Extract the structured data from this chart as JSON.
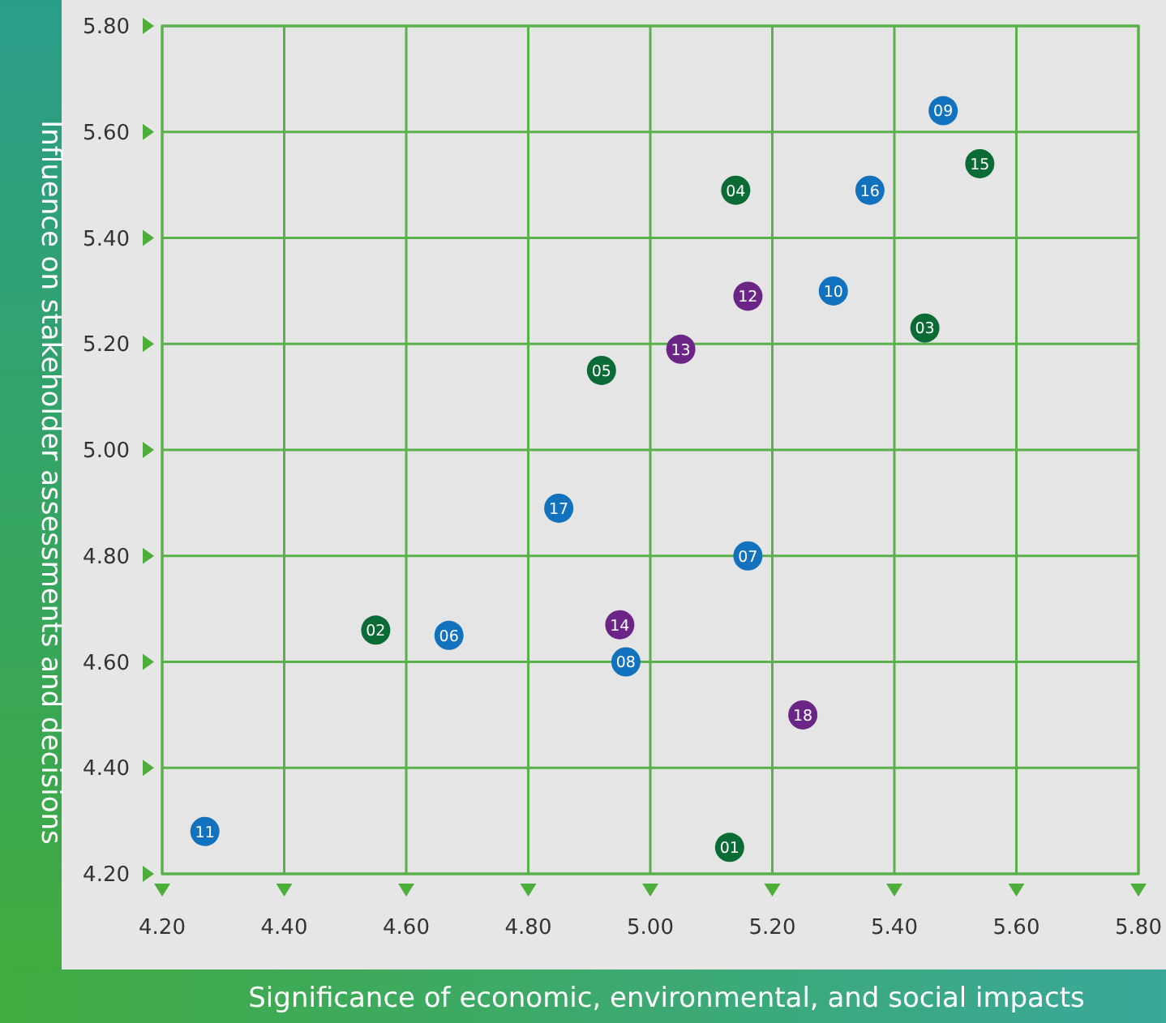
{
  "chart_data": {
    "type": "scatter",
    "xlabel": "Significance of economic, environmental, and social impacts",
    "ylabel": "Influence on stakeholder assessments and decisions",
    "xlim": [
      4.2,
      5.8
    ],
    "ylim": [
      4.2,
      5.8
    ],
    "xticks": [
      {
        "value": 4.2,
        "label": "4.20"
      },
      {
        "value": 4.4,
        "label": "4.40"
      },
      {
        "value": 4.6,
        "label": "4.60"
      },
      {
        "value": 4.8,
        "label": "4.80"
      },
      {
        "value": 5.0,
        "label": "5.00"
      },
      {
        "value": 5.2,
        "label": "5.20"
      },
      {
        "value": 5.4,
        "label": "5.40"
      },
      {
        "value": 5.6,
        "label": "5.60"
      },
      {
        "value": 5.8,
        "label": "5.80"
      }
    ],
    "yticks": [
      {
        "value": 4.2,
        "label": "4.20"
      },
      {
        "value": 4.4,
        "label": "4.40"
      },
      {
        "value": 4.6,
        "label": "4.60"
      },
      {
        "value": 4.8,
        "label": "4.80"
      },
      {
        "value": 5.0,
        "label": "5.00"
      },
      {
        "value": 5.2,
        "label": "5.20"
      },
      {
        "value": 5.4,
        "label": "5.40"
      },
      {
        "value": 5.6,
        "label": "5.60"
      },
      {
        "value": 5.8,
        "label": "5.80"
      }
    ],
    "grid": true,
    "marker": "circle",
    "series": [
      {
        "color": "#0b6b35",
        "x": [
          5.13,
          4.55,
          5.45,
          5.14,
          4.92,
          5.54
        ],
        "values": [
          4.25,
          4.66,
          5.23,
          5.49,
          5.15,
          5.54
        ]
      },
      {
        "color": "#1372bd",
        "x": [
          4.67,
          5.16,
          4.96,
          5.48,
          5.3,
          4.27,
          5.36,
          4.85
        ],
        "values": [
          4.65,
          4.8,
          4.6,
          5.64,
          5.3,
          4.28,
          5.49,
          4.89
        ]
      },
      {
        "color": "#6a2586",
        "x": [
          5.16,
          5.05,
          4.95,
          5.25
        ],
        "values": [
          5.29,
          5.19,
          4.67,
          4.5
        ]
      }
    ],
    "annotations": [
      {
        "text": "01",
        "x": 5.13,
        "y": 4.25
      },
      {
        "text": "02",
        "x": 4.55,
        "y": 4.66
      },
      {
        "text": "03",
        "x": 5.45,
        "y": 5.23
      },
      {
        "text": "04",
        "x": 5.14,
        "y": 5.49
      },
      {
        "text": "05",
        "x": 4.92,
        "y": 5.15
      },
      {
        "text": "06",
        "x": 4.67,
        "y": 4.65
      },
      {
        "text": "07",
        "x": 5.16,
        "y": 4.8
      },
      {
        "text": "08",
        "x": 4.96,
        "y": 4.6
      },
      {
        "text": "09",
        "x": 5.48,
        "y": 5.64
      },
      {
        "text": "10",
        "x": 5.3,
        "y": 5.3
      },
      {
        "text": "11",
        "x": 4.27,
        "y": 4.28
      },
      {
        "text": "12",
        "x": 5.16,
        "y": 5.29
      },
      {
        "text": "13",
        "x": 5.05,
        "y": 5.19
      },
      {
        "text": "14",
        "x": 4.95,
        "y": 4.67
      },
      {
        "text": "15",
        "x": 5.54,
        "y": 5.54
      },
      {
        "text": "16",
        "x": 5.36,
        "y": 5.49
      },
      {
        "text": "17",
        "x": 4.85,
        "y": 4.89
      },
      {
        "text": "18",
        "x": 5.25,
        "y": 4.5
      }
    ]
  }
}
